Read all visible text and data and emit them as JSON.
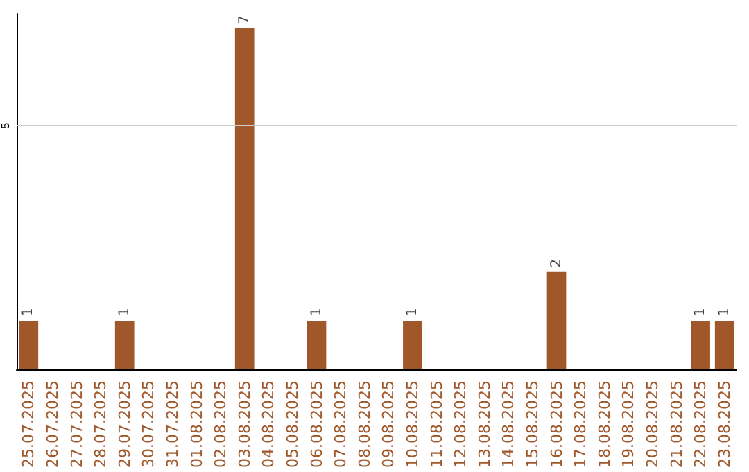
{
  "chart_data": {
    "type": "bar",
    "categories": [
      "25.07.2025",
      "26.07.2025",
      "27.07.2025",
      "28.07.2025",
      "29.07.2025",
      "30.07.2025",
      "31.07.2025",
      "01.08.2025",
      "02.08.2025",
      "03.08.2025",
      "04.08.2025",
      "05.08.2025",
      "06.08.2025",
      "07.08.2025",
      "08.08.2025",
      "09.08.2025",
      "10.08.2025",
      "11.08.2025",
      "12.08.2025",
      "13.08.2025",
      "14.08.2025",
      "15.08.2025",
      "16.08.2025",
      "17.08.2025",
      "18.08.2025",
      "19.08.2025",
      "20.08.2025",
      "21.08.2025",
      "22.08.2025",
      "23.08.2025"
    ],
    "values": [
      1,
      0,
      0,
      0,
      1,
      0,
      0,
      0,
      0,
      7,
      0,
      0,
      1,
      0,
      0,
      0,
      1,
      0,
      0,
      0,
      0,
      0,
      2,
      0,
      0,
      0,
      0,
      0,
      1,
      1
    ],
    "value_labels": [
      "1",
      null,
      null,
      null,
      "1",
      null,
      null,
      null,
      null,
      "7",
      null,
      null,
      "1",
      null,
      null,
      null,
      "1",
      null,
      null,
      null,
      null,
      null,
      "2",
      null,
      null,
      null,
      null,
      null,
      "1",
      "1"
    ],
    "color": "#a0572a",
    "ylim": [
      0,
      7.3
    ],
    "yticks": [
      5
    ],
    "grid": "y"
  }
}
